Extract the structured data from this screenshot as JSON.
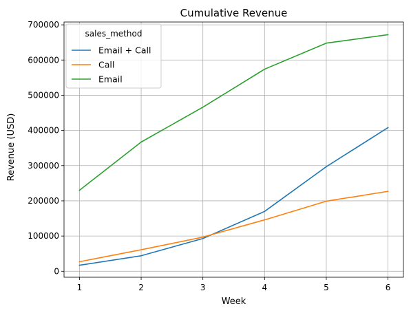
{
  "chart_data": {
    "type": "line",
    "title": "Cumulative Revenue",
    "xlabel": "Week",
    "ylabel": "Revenue (USD)",
    "x": [
      1,
      2,
      3,
      4,
      5,
      6
    ],
    "xlim": [
      0.75,
      6.25
    ],
    "ylim": [
      -17000,
      708000
    ],
    "yticks": [
      0,
      100000,
      200000,
      300000,
      400000,
      500000,
      600000,
      700000
    ],
    "grid": true,
    "legend": {
      "title": "sales_method",
      "placement": "top-left"
    },
    "series": [
      {
        "name": "Email + Call",
        "color": "#1f77b4",
        "values": [
          17000,
          44000,
          93000,
          170000,
          297000,
          408000
        ]
      },
      {
        "name": "Call",
        "color": "#ff7f0e",
        "values": [
          27000,
          61000,
          97000,
          146000,
          199000,
          227000
        ]
      },
      {
        "name": "Email",
        "color": "#2ca02c",
        "values": [
          230000,
          367000,
          466000,
          574000,
          648000,
          672000
        ]
      }
    ]
  }
}
